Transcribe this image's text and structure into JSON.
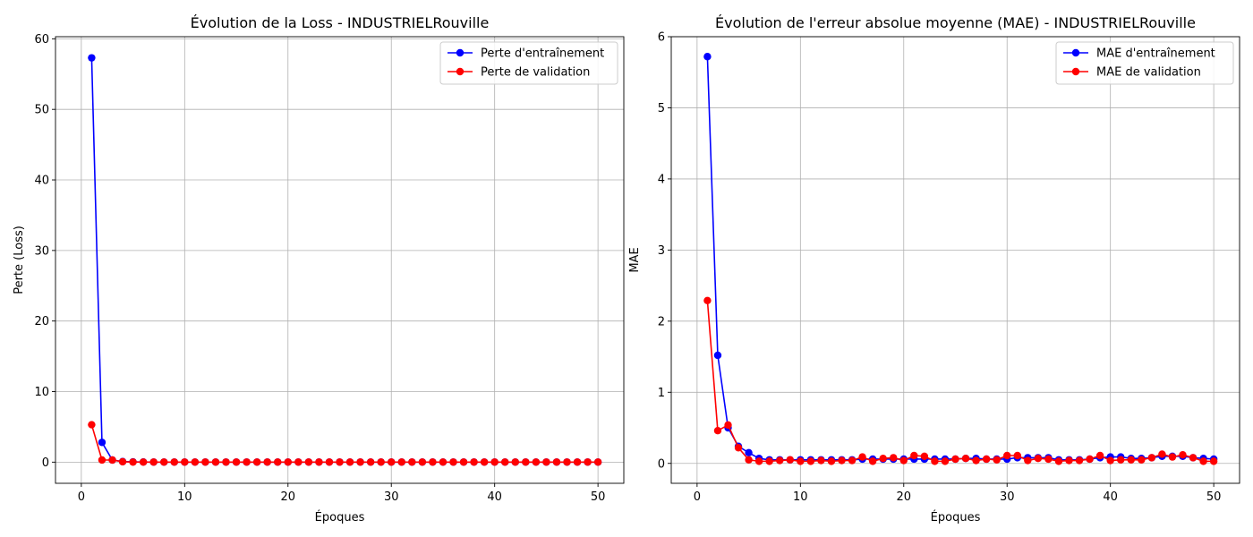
{
  "chart_data": [
    {
      "type": "line",
      "title": "Évolution de la Loss - INDUSTRIELRouville",
      "xlabel": "Époques",
      "ylabel": "Perte (Loss)",
      "xlim": [
        -2.5,
        52.5
      ],
      "ylim": [
        -3,
        60.3
      ],
      "xticks": [
        0,
        10,
        20,
        30,
        40,
        50
      ],
      "yticks": [
        0,
        10,
        20,
        30,
        40,
        50,
        60
      ],
      "grid": true,
      "legend_position": "top-right",
      "x": [
        1,
        2,
        3,
        4,
        5,
        6,
        7,
        8,
        9,
        10,
        11,
        12,
        13,
        14,
        15,
        16,
        17,
        18,
        19,
        20,
        21,
        22,
        23,
        24,
        25,
        26,
        27,
        28,
        29,
        30,
        31,
        32,
        33,
        34,
        35,
        36,
        37,
        38,
        39,
        40,
        41,
        42,
        43,
        44,
        45,
        46,
        47,
        48,
        49,
        50
      ],
      "series": [
        {
          "name": "Perte d'entraînement",
          "color": "#0000ff",
          "values": [
            57.3,
            2.8,
            0.3,
            0.08,
            0.04,
            0.02,
            0.01,
            0.01,
            0.01,
            0.01,
            0.01,
            0.01,
            0.01,
            0.01,
            0.01,
            0.01,
            0.01,
            0.01,
            0.01,
            0.01,
            0.01,
            0.01,
            0.01,
            0.01,
            0.01,
            0.01,
            0.01,
            0.01,
            0.01,
            0.01,
            0.01,
            0.01,
            0.01,
            0.01,
            0.01,
            0.01,
            0.01,
            0.01,
            0.01,
            0.01,
            0.01,
            0.01,
            0.01,
            0.01,
            0.01,
            0.01,
            0.01,
            0.01,
            0.01,
            0.01
          ]
        },
        {
          "name": "Perte de validation",
          "color": "#ff0000",
          "values": [
            5.3,
            0.3,
            0.3,
            0.05,
            0.01,
            0.01,
            0.01,
            0.01,
            0.01,
            0.01,
            0.01,
            0.01,
            0.01,
            0.01,
            0.01,
            0.01,
            0.01,
            0.01,
            0.01,
            0.01,
            0.01,
            0.01,
            0.01,
            0.01,
            0.01,
            0.01,
            0.01,
            0.01,
            0.01,
            0.01,
            0.01,
            0.01,
            0.01,
            0.01,
            0.01,
            0.01,
            0.01,
            0.01,
            0.01,
            0.01,
            0.01,
            0.01,
            0.01,
            0.01,
            0.01,
            0.01,
            0.01,
            0.01,
            0.01,
            0.01
          ]
        }
      ]
    },
    {
      "type": "line",
      "title": "Évolution de l'erreur absolue moyenne (MAE) - INDUSTRIELRouville",
      "xlabel": "Époques",
      "ylabel": "MAE",
      "xlim": [
        -2.5,
        52.5
      ],
      "ylim": [
        -0.28,
        6.0
      ],
      "xticks": [
        0,
        10,
        20,
        30,
        40,
        50
      ],
      "yticks": [
        0,
        1,
        2,
        3,
        4,
        5,
        6
      ],
      "grid": true,
      "legend_position": "top-right",
      "x": [
        1,
        2,
        3,
        4,
        5,
        6,
        7,
        8,
        9,
        10,
        11,
        12,
        13,
        14,
        15,
        16,
        17,
        18,
        19,
        20,
        21,
        22,
        23,
        24,
        25,
        26,
        27,
        28,
        29,
        30,
        31,
        32,
        33,
        34,
        35,
        36,
        37,
        38,
        39,
        40,
        41,
        42,
        43,
        44,
        45,
        46,
        47,
        48,
        49,
        50
      ],
      "series": [
        {
          "name": "MAE d'entraînement",
          "color": "#0000ff",
          "values": [
            5.72,
            1.52,
            0.5,
            0.24,
            0.15,
            0.07,
            0.05,
            0.05,
            0.05,
            0.05,
            0.05,
            0.05,
            0.05,
            0.05,
            0.05,
            0.06,
            0.06,
            0.06,
            0.06,
            0.06,
            0.06,
            0.06,
            0.06,
            0.06,
            0.06,
            0.07,
            0.07,
            0.06,
            0.06,
            0.06,
            0.08,
            0.08,
            0.08,
            0.08,
            0.05,
            0.05,
            0.05,
            0.06,
            0.08,
            0.09,
            0.09,
            0.07,
            0.07,
            0.08,
            0.1,
            0.1,
            0.1,
            0.08,
            0.07,
            0.06
          ]
        },
        {
          "name": "MAE de validation",
          "color": "#ff0000",
          "values": [
            2.29,
            0.46,
            0.54,
            0.22,
            0.05,
            0.03,
            0.03,
            0.04,
            0.05,
            0.03,
            0.03,
            0.04,
            0.03,
            0.04,
            0.04,
            0.09,
            0.03,
            0.07,
            0.08,
            0.04,
            0.11,
            0.1,
            0.03,
            0.03,
            0.06,
            0.07,
            0.04,
            0.06,
            0.05,
            0.11,
            0.11,
            0.04,
            0.07,
            0.06,
            0.03,
            0.04,
            0.04,
            0.06,
            0.11,
            0.04,
            0.05,
            0.05,
            0.05,
            0.08,
            0.13,
            0.09,
            0.12,
            0.08,
            0.03,
            0.03
          ]
        }
      ]
    }
  ]
}
